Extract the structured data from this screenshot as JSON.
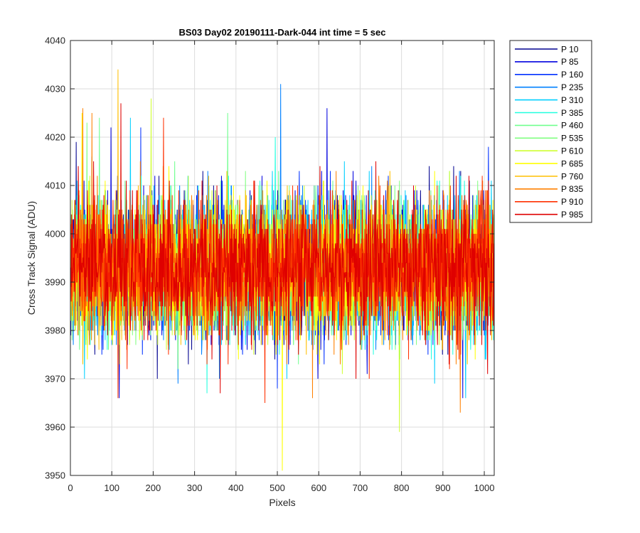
{
  "chart_data": {
    "type": "line",
    "title": "BS03 Day02 20190111-Dark-044 int time = 5 sec",
    "xlabel": "Pixels",
    "ylabel": "Cross Track Signal (ADU)",
    "xlim": [
      0,
      1024
    ],
    "ylim": [
      3950,
      4040
    ],
    "xticks": [
      0,
      100,
      200,
      300,
      400,
      500,
      600,
      700,
      800,
      900,
      1000
    ],
    "yticks": [
      3950,
      3960,
      3970,
      3980,
      3990,
      4000,
      4010,
      4020,
      4030,
      4040
    ],
    "grid": true,
    "legend_position": "outside-top-right",
    "x": {
      "start": 1,
      "end": 1024,
      "step": 1
    },
    "noise_mean": 3993,
    "noise_std": 7,
    "series": [
      {
        "name": "P 10",
        "color": "#00008f",
        "peaks": [
          [
            14,
            4019
          ],
          [
            210,
            3970
          ]
        ]
      },
      {
        "name": "P 85",
        "color": "#0000df",
        "peaks": [
          [
            98,
            4022
          ],
          [
            118,
            3966
          ],
          [
            620,
            4026
          ],
          [
            948,
            3966
          ]
        ]
      },
      {
        "name": "P 160",
        "color": "#0030ff",
        "peaks": [
          [
            170,
            4022
          ],
          [
            500,
            3968
          ],
          [
            1010,
            4018
          ]
        ]
      },
      {
        "name": "P 235",
        "color": "#0080ff",
        "peaks": [
          [
            508,
            4031
          ],
          [
            260,
            3969
          ]
        ]
      },
      {
        "name": "P 310",
        "color": "#00cfff",
        "peaks": [
          [
            145,
            4024
          ],
          [
            880,
            3969
          ],
          [
            955,
            3966
          ]
        ]
      },
      {
        "name": "P 385",
        "color": "#20ffdf",
        "peaks": [
          [
            330,
            3967
          ],
          [
            495,
            4020
          ]
        ]
      },
      {
        "name": "P 460",
        "color": "#70ff8f",
        "peaks": [
          [
            380,
            4025
          ],
          [
            70,
            4024
          ]
        ]
      },
      {
        "name": "P 535",
        "color": "#80ff80",
        "peaks": [
          [
            40,
            4023
          ],
          [
            260,
            3972
          ]
        ]
      },
      {
        "name": "P 610",
        "color": "#cfff30",
        "peaks": [
          [
            195,
            4028
          ],
          [
            795,
            3959
          ]
        ]
      },
      {
        "name": "P 685",
        "color": "#ffff00",
        "peaks": [
          [
            512,
            3951
          ],
          [
            28,
            4025
          ]
        ]
      },
      {
        "name": "P 760",
        "color": "#ffbf00",
        "peaks": [
          [
            115,
            4034
          ],
          [
            30,
            3973
          ]
        ]
      },
      {
        "name": "P 835",
        "color": "#ff8000",
        "peaks": [
          [
            30,
            4026
          ],
          [
            52,
            4025
          ],
          [
            585,
            3966
          ],
          [
            942,
            3963
          ]
        ]
      },
      {
        "name": "P 910",
        "color": "#ff3000",
        "peaks": [
          [
            470,
            3965
          ],
          [
            225,
            4024
          ],
          [
            115,
            3966
          ]
        ]
      },
      {
        "name": "P 985",
        "color": "#df0000",
        "peaks": [
          [
            122,
            4027
          ],
          [
            362,
            3967
          ],
          [
            690,
            3970
          ]
        ]
      }
    ]
  }
}
